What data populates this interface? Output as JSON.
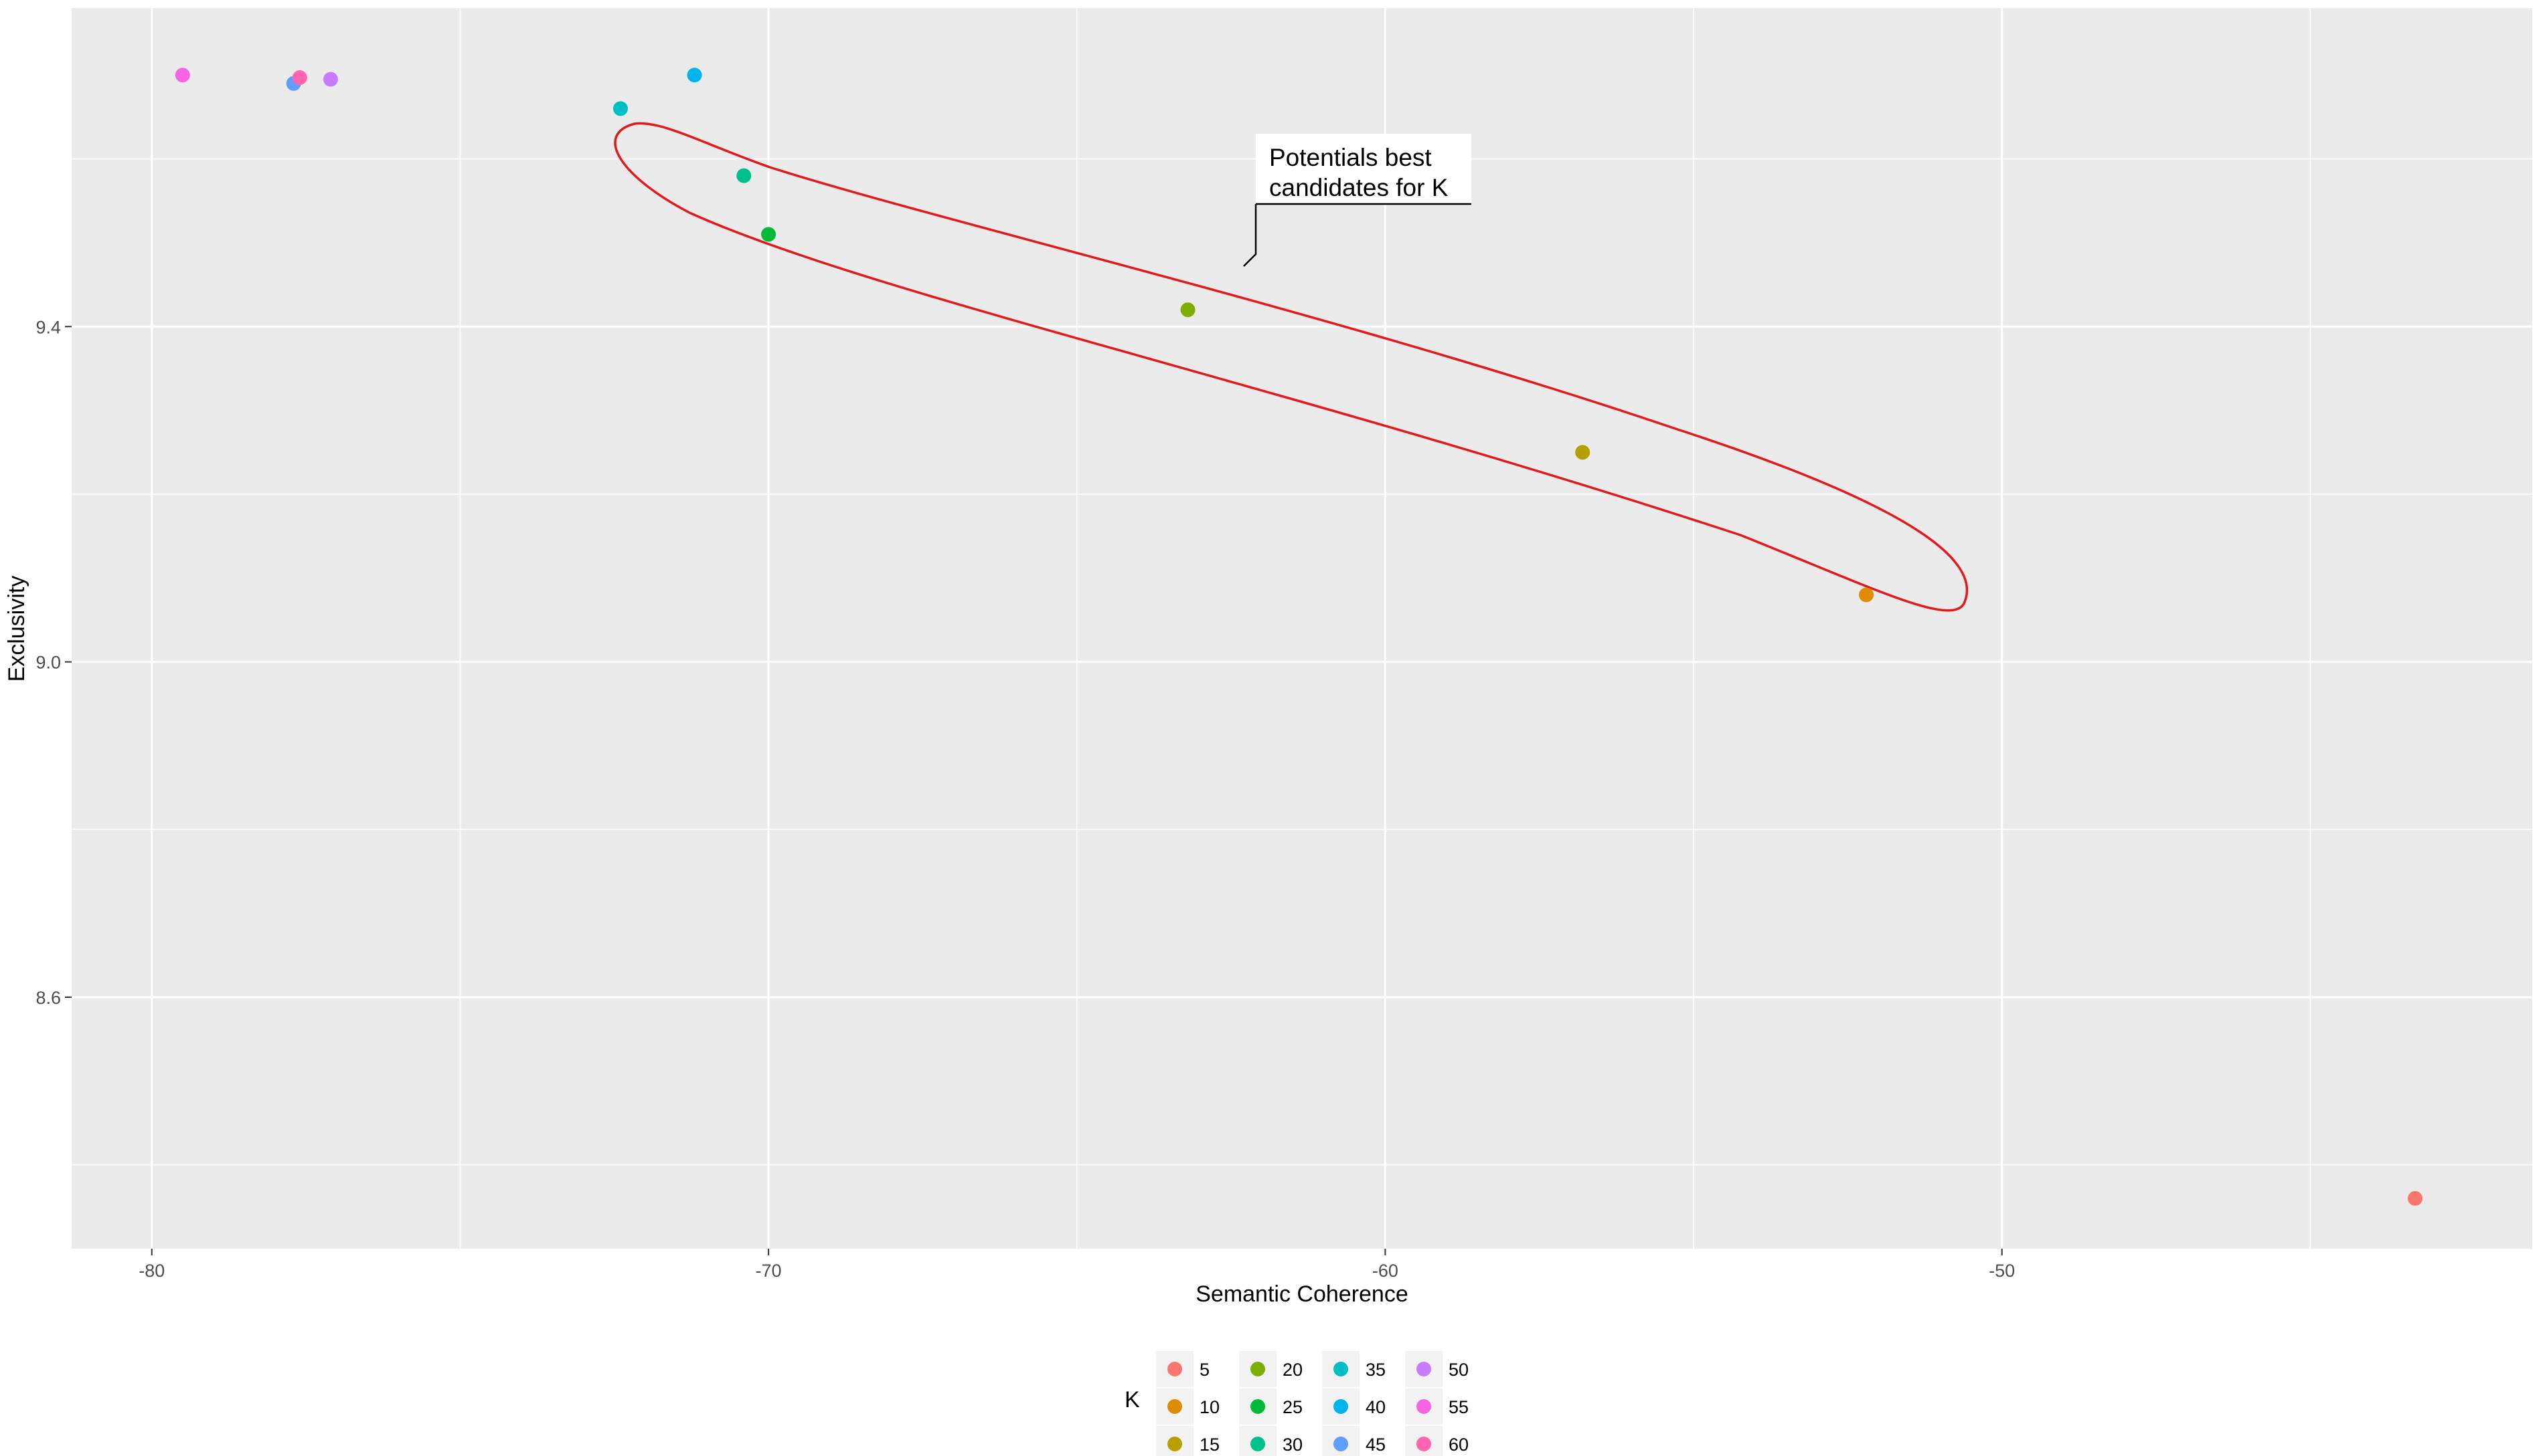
{
  "chart_data": {
    "type": "scatter",
    "title": "",
    "xlabel": "Semantic Coherence",
    "ylabel": "Exclusivity",
    "xlim": [
      -81.3,
      -41.4
    ],
    "ylim": [
      8.3,
      9.78
    ],
    "x_ticks": [
      -80,
      -70,
      -60,
      -50
    ],
    "y_ticks": [
      8.6,
      9.0,
      9.4
    ],
    "x_tick_labels": [
      "-80",
      "-70",
      "-60",
      "-50"
    ],
    "y_tick_labels": [
      "8.6",
      "9.0",
      "9.4"
    ],
    "grid": true,
    "legend": {
      "title": "K",
      "placement": "bottom",
      "columns": 4
    },
    "series": [
      {
        "name": "5",
        "color": "#F8766D",
        "x": [
          -43.3
        ],
        "y": [
          8.36
        ]
      },
      {
        "name": "10",
        "color": "#DE8C00",
        "x": [
          -52.2
        ],
        "y": [
          9.08
        ]
      },
      {
        "name": "15",
        "color": "#B79F00",
        "x": [
          -56.8
        ],
        "y": [
          9.25
        ]
      },
      {
        "name": "20",
        "color": "#7CAE00",
        "x": [
          -63.2
        ],
        "y": [
          9.42
        ]
      },
      {
        "name": "25",
        "color": "#00BA38",
        "x": [
          -70.0
        ],
        "y": [
          9.51
        ]
      },
      {
        "name": "30",
        "color": "#00C08B",
        "x": [
          -70.4
        ],
        "y": [
          9.58
        ]
      },
      {
        "name": "35",
        "color": "#00BFC4",
        "x": [
          -72.4
        ],
        "y": [
          9.66
        ]
      },
      {
        "name": "40",
        "color": "#00B4F0",
        "x": [
          -71.2
        ],
        "y": [
          9.7
        ]
      },
      {
        "name": "45",
        "color": "#619CFF",
        "x": [
          -77.7
        ],
        "y": [
          9.69
        ]
      },
      {
        "name": "50",
        "color": "#C77CFF",
        "x": [
          -77.1
        ],
        "y": [
          9.695
        ]
      },
      {
        "name": "55",
        "color": "#F564E3",
        "x": [
          -79.5
        ],
        "y": [
          9.7
        ]
      },
      {
        "name": "60",
        "color": "#FF64B0",
        "x": [
          -77.6
        ],
        "y": [
          9.697
        ]
      }
    ],
    "annotation": {
      "text_lines": [
        "Potentials best",
        "candidates for K"
      ],
      "ellipse_color": "#e31a1c"
    }
  }
}
